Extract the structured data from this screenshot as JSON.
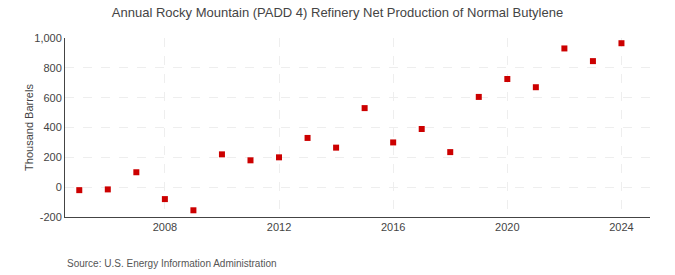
{
  "chart_data": {
    "type": "scatter",
    "title": "Annual Rocky Mountain (PADD 4) Refinery Net Production of Normal Butylene",
    "ylabel": "Thousand Barrels",
    "source": "Source: U.S. Energy Information Administration",
    "x": [
      2005,
      2006,
      2007,
      2008,
      2009,
      2010,
      2011,
      2012,
      2013,
      2014,
      2015,
      2016,
      2017,
      2018,
      2019,
      2020,
      2021,
      2022,
      2023,
      2024
    ],
    "values": [
      -20,
      -15,
      100,
      -80,
      -155,
      220,
      180,
      200,
      330,
      265,
      530,
      300,
      390,
      235,
      605,
      725,
      670,
      930,
      845,
      965
    ],
    "color": "#cc0000",
    "marker": "square",
    "xlim": [
      2004.5,
      2025.0
    ],
    "xticks": [
      2008,
      2012,
      2016,
      2020,
      2024
    ],
    "ylim": [
      -200,
      1000
    ],
    "yticks": [
      -200,
      0,
      200,
      400,
      600,
      800,
      {
        "value": 1000,
        "label": "1,000"
      }
    ],
    "grid": true
  }
}
